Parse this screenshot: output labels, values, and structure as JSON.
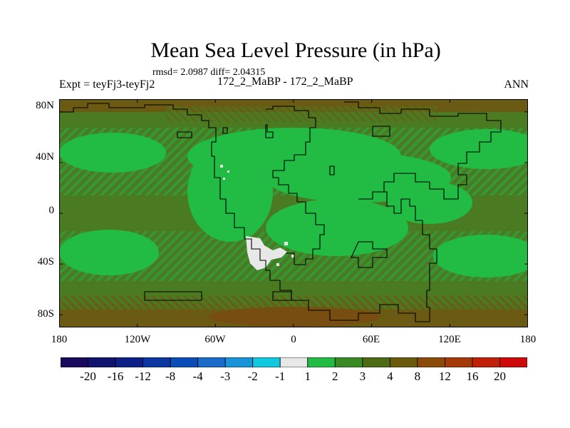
{
  "title": "Mean Sea Level Pressure (in hPa)",
  "stats": "rmsd= 2.0987 diff= 2.04315",
  "experiment": "Expt = teyFj3-teyFj2",
  "case_label": "172_2_MaBP - 172_2_MaBP",
  "season": "ANN",
  "y_axis": {
    "ticks": [
      "80N",
      "40N",
      "0",
      "40S",
      "80S"
    ],
    "lats": [
      80,
      40,
      0,
      -40,
      -80
    ],
    "range": [
      -90,
      90
    ]
  },
  "x_axis": {
    "ticks": [
      "180",
      "120W",
      "60W",
      "0",
      "60E",
      "120E",
      "180"
    ],
    "lons": [
      -180,
      -120,
      -60,
      0,
      60,
      120,
      180
    ],
    "range": [
      -180,
      180
    ]
  },
  "colorbar": {
    "labels": [
      "-20",
      "-16",
      "-12",
      "-8",
      "-4",
      "-3",
      "-2",
      "-1",
      "1",
      "2",
      "3",
      "4",
      "8",
      "12",
      "16",
      "20"
    ],
    "colors": [
      "#1a0a5e",
      "#10146e",
      "#0c2088",
      "#0c36a0",
      "#0a4cb8",
      "#1a6cc8",
      "#1a94d8",
      "#10c8e0",
      "#e8e8e8",
      "#22bb44",
      "#3a8a24",
      "#4d6a14",
      "#6a5a0c",
      "#8a4a08",
      "#a43a08",
      "#c02008",
      "#cc0a0a"
    ]
  },
  "colors": {
    "field_main": "#4a7a22",
    "field_high": "#22bb44",
    "field_mid": "#3c8a2a",
    "field_polar": "#6a5a14",
    "field_polar_strong": "#7a4a10",
    "neutral": "#e8e8e8",
    "coastline": "#000000"
  }
}
